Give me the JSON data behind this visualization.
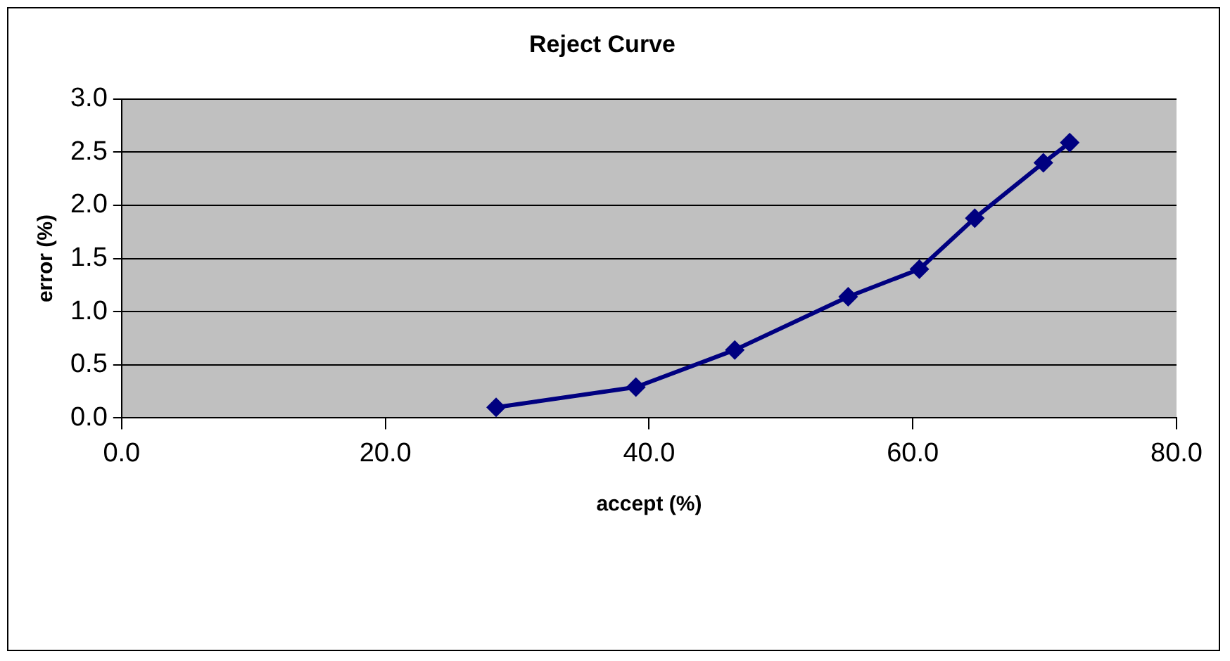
{
  "chart_data": {
    "type": "line",
    "title": "Reject Curve",
    "xlabel": "accept (%)",
    "ylabel": "error (%)",
    "x": [
      28.4,
      39.0,
      46.5,
      55.1,
      60.5,
      64.7,
      69.9,
      71.9
    ],
    "series": [
      {
        "color": "#000080",
        "values": [
          0.1,
          0.29,
          0.64,
          1.14,
          1.4,
          1.88,
          2.4,
          2.59
        ]
      }
    ],
    "xlim": [
      0,
      80
    ],
    "xticks": [
      {
        "value": 0,
        "label": "0.0"
      },
      {
        "value": 20,
        "label": "20.0"
      },
      {
        "value": 40,
        "label": "40.0"
      },
      {
        "value": 60,
        "label": "60.0"
      },
      {
        "value": 80,
        "label": "80.0"
      }
    ],
    "ylim": [
      0,
      3
    ],
    "yticks": [
      {
        "value": 0,
        "label": "0.0"
      },
      {
        "value": 0.5,
        "label": "0.5"
      },
      {
        "value": 1,
        "label": "1.0"
      },
      {
        "value": 1.5,
        "label": "1.5"
      },
      {
        "value": 2,
        "label": "2.0"
      },
      {
        "value": 2.5,
        "label": "2.5"
      },
      {
        "value": 3,
        "label": "3.0"
      }
    ],
    "grid": "y",
    "legend": false,
    "marker": "diamond",
    "line_style": "solid"
  }
}
